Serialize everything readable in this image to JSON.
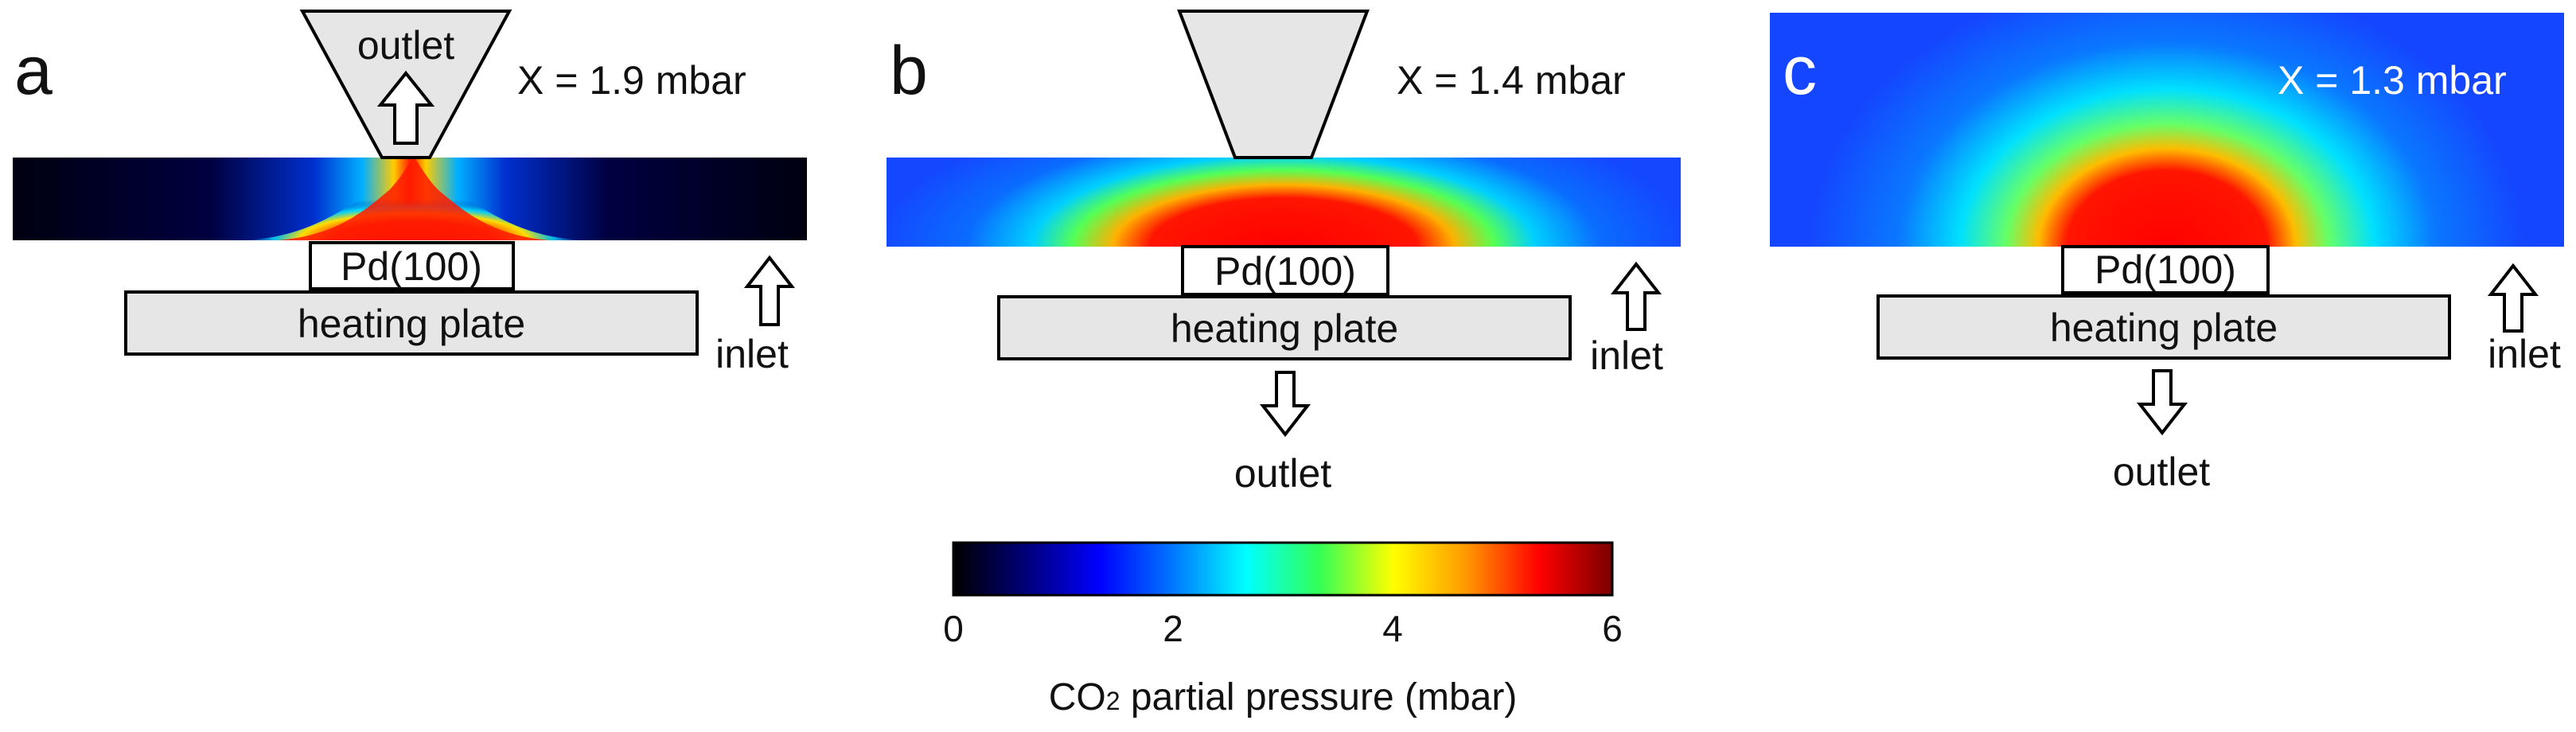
{
  "colormap": {
    "stops": [
      "#000000",
      "#00007a",
      "#0000ff",
      "#0077ff",
      "#00ffff",
      "#33ff55",
      "#ffff00",
      "#ff9900",
      "#ff0000",
      "#7a0000"
    ],
    "tick_labels": [
      "0",
      "2",
      "4",
      "6"
    ],
    "range": [
      0,
      6
    ],
    "title_main": "CO",
    "title_sub": "2",
    "title_rest": " partial pressure (mbar)"
  },
  "panels": [
    {
      "letter": "a",
      "x_label": "X = 1.9 mbar",
      "top_nozzle_label": "outlet",
      "crystal_label": "Pd(100)",
      "heater_label": "heating plate",
      "inlet_label": "inlet",
      "bottom_outlet_label": "",
      "background_level": 0.0,
      "peak_level": 5.2
    },
    {
      "letter": "b",
      "x_label": "X = 1.4 mbar",
      "top_nozzle_label": "",
      "crystal_label": "Pd(100)",
      "heater_label": "heating plate",
      "inlet_label": "inlet",
      "bottom_outlet_label": "outlet",
      "background_level": 1.4,
      "peak_level": 5.2
    },
    {
      "letter": "c",
      "x_label": "X = 1.3 mbar",
      "top_nozzle_label": "",
      "crystal_label": "Pd(100)",
      "heater_label": "heating plate",
      "inlet_label": "inlet",
      "bottom_outlet_label": "outlet",
      "background_level": 1.3,
      "peak_level": 5.1
    }
  ]
}
